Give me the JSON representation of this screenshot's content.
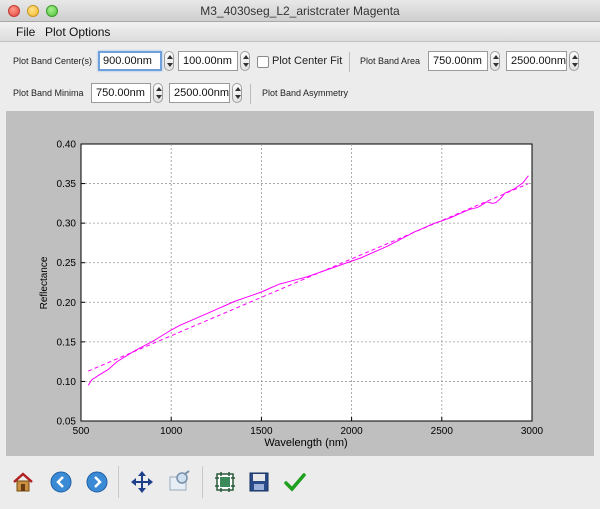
{
  "window": {
    "title": "M3_4030seg_L2_aristcrater Magenta"
  },
  "menu": {
    "file": "File",
    "plot_options": "Plot Options"
  },
  "controls": {
    "band_center_label": "Plot Band Center(s)",
    "band_center_1": "900.00nm",
    "band_center_2": "100.00nm",
    "center_fit_label": "Plot Center Fit",
    "center_fit_checked": false,
    "band_area_label": "Plot Band Area",
    "band_area_1": "750.00nm",
    "band_area_2": "2500.00nm",
    "band_minima_label": "Plot Band Minima",
    "band_minima_1": "750.00nm",
    "band_minima_2": "2500.00nm",
    "band_asymmetry_label": "Plot Band Asymmetry"
  },
  "toolbar_icons": [
    "home-icon",
    "back-arrow-icon",
    "forward-arrow-icon",
    "pan-move-icon",
    "zoom-rect-icon",
    "subplot-config-icon",
    "save-floppy-icon",
    "checkmark-icon"
  ],
  "chart_data": {
    "type": "line",
    "title": "",
    "xlabel": "Wavelength (nm)",
    "ylabel": "Reflectance",
    "xlim": [
      500,
      3000
    ],
    "ylim": [
      0.05,
      0.4
    ],
    "xticks": [
      500,
      1000,
      1500,
      2000,
      2500,
      3000
    ],
    "yticks": [
      0.05,
      0.1,
      0.15,
      0.2,
      0.25,
      0.3,
      0.35,
      0.4
    ],
    "grid": true,
    "series": [
      {
        "style": "solid",
        "color": "#ff00ff",
        "x": [
          540,
          560,
          600,
          650,
          700,
          750,
          800,
          850,
          900,
          950,
          1000,
          1050,
          1100,
          1150,
          1200,
          1250,
          1300,
          1350,
          1400,
          1450,
          1500,
          1550,
          1600,
          1650,
          1700,
          1750,
          1800,
          1850,
          1900,
          1950,
          2000,
          2050,
          2100,
          2150,
          2200,
          2250,
          2300,
          2350,
          2400,
          2450,
          2500,
          2550,
          2600,
          2650,
          2700,
          2750,
          2780,
          2800,
          2830,
          2850,
          2900,
          2950,
          2980
        ],
        "y": [
          0.095,
          0.102,
          0.108,
          0.115,
          0.125,
          0.132,
          0.139,
          0.145,
          0.151,
          0.158,
          0.165,
          0.171,
          0.176,
          0.181,
          0.186,
          0.191,
          0.196,
          0.201,
          0.205,
          0.209,
          0.213,
          0.218,
          0.223,
          0.226,
          0.229,
          0.232,
          0.236,
          0.24,
          0.244,
          0.248,
          0.252,
          0.256,
          0.261,
          0.266,
          0.271,
          0.277,
          0.283,
          0.289,
          0.294,
          0.299,
          0.303,
          0.307,
          0.312,
          0.317,
          0.32,
          0.327,
          0.325,
          0.326,
          0.332,
          0.338,
          0.343,
          0.351,
          0.36
        ]
      },
      {
        "style": "dashed",
        "color": "#ff00ff",
        "x": [
          540,
          2980
        ],
        "y": [
          0.113,
          0.35
        ]
      }
    ]
  }
}
